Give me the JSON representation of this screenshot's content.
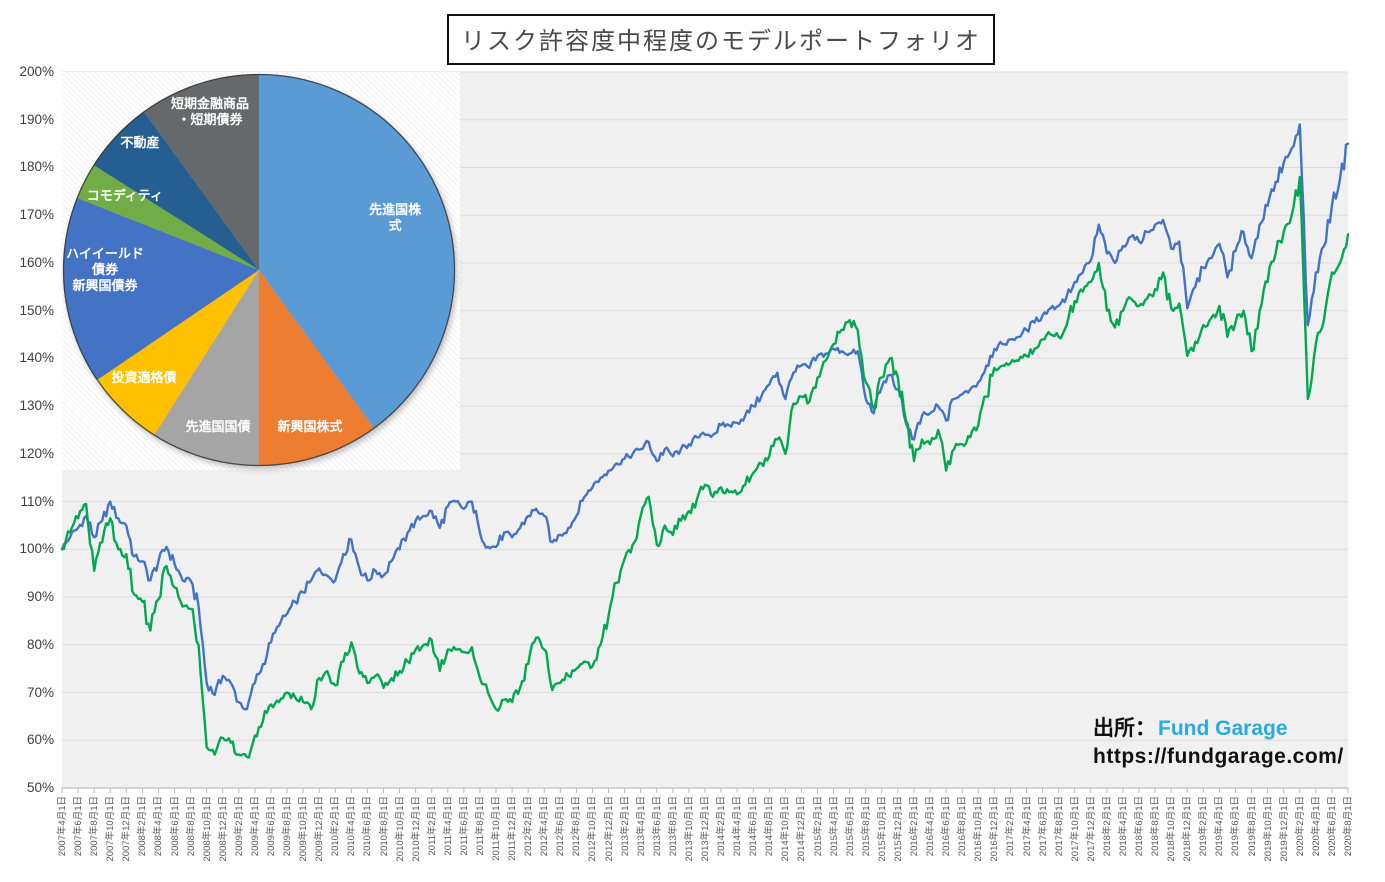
{
  "title": "リスク許容度中程度のモデルポートフォリオ",
  "source": {
    "prefix": "出所：",
    "name": "Fund Garage",
    "url": "https://fundgarage.com/",
    "brand_color": "#29ABE2"
  },
  "chart_data": [
    {
      "type": "line",
      "title": "リスク許容度中程度のモデルポートフォリオ",
      "xlabel": "",
      "ylabel": "",
      "grid": "horizontal",
      "legend": "none",
      "y_axis": {
        "min": 50,
        "max": 200,
        "step": 10,
        "format": "percent",
        "tick_labels": [
          "200%",
          "190%",
          "180%",
          "170%",
          "160%",
          "150%",
          "140%",
          "130%",
          "120%",
          "110%",
          "100%",
          "90%",
          "80%",
          "70%",
          "60%",
          "50%"
        ]
      },
      "x_axis": {
        "start": "2007年4月1日",
        "end": "2020年8月1日",
        "tick_interval_months": 2,
        "tick_labels": [
          "2007年4月1日",
          "2007年6月1日",
          "2007年8月1日",
          "2007年10月1日",
          "2007年12月1日",
          "2008年2月1日",
          "2008年4月1日",
          "2008年6月1日",
          "2008年8月1日",
          "2008年10月1日",
          "2008年12月1日",
          "2009年2月1日",
          "2009年4月1日",
          "2009年6月1日",
          "2009年8月1日",
          "2009年10月1日",
          "2009年12月1日",
          "2010年2月1日",
          "2010年4月1日",
          "2010年6月1日",
          "2010年8月1日",
          "2010年10月1日",
          "2010年12月1日",
          "2011年2月1日",
          "2011年4月1日",
          "2011年6月1日",
          "2011年8月1日",
          "2011年10月1日",
          "2011年12月1日",
          "2012年2月1日",
          "2012年4月1日",
          "2012年6月1日",
          "2012年8月1日",
          "2012年10月1日",
          "2012年12月1日",
          "2013年2月1日",
          "2013年4月1日",
          "2013年6月1日",
          "2013年8月1日",
          "2013年10月1日",
          "2013年12月1日",
          "2014年2月1日",
          "2014年4月1日",
          "2014年6月1日",
          "2014年8月1日",
          "2014年10月1日",
          "2014年12月1日",
          "2015年2月1日",
          "2015年4月1日",
          "2015年6月1日",
          "2015年8月1日",
          "2015年10月1日",
          "2015年12月1日",
          "2016年2月1日",
          "2016年4月1日",
          "2016年6月1日",
          "2016年8月1日",
          "2016年10月1日",
          "2016年12月1日",
          "2017年2月1日",
          "2017年4月1日",
          "2017年6月1日",
          "2017年8月1日",
          "2017年10月1日",
          "2017年12月1日",
          "2018年2月1日",
          "2018年4月1日",
          "2018年6月1日",
          "2018年8月1日",
          "2018年10月1日",
          "2018年12月1日",
          "2019年2月1日",
          "2019年4月1日",
          "2019年6月1日",
          "2019年8月1日",
          "2019年10月1日",
          "2019年12月1日",
          "2020年2月1日",
          "2020年4月1日",
          "2020年6月1日",
          "2020年8月1日"
        ]
      },
      "series": [
        {
          "name": "blue",
          "color": "#4472C4",
          "monthly_start": "2007-04",
          "monthly_values": [
            100,
            102.5,
            104.5,
            107,
            102.5,
            106,
            110,
            106.5,
            105,
            98.5,
            97.5,
            93.5,
            97.5,
            100.5,
            97,
            93.5,
            93.5,
            88,
            72,
            69.5,
            73.5,
            72,
            68,
            66.5,
            72,
            76,
            80.5,
            84,
            86.5,
            89,
            91,
            93.5,
            96,
            94.5,
            93.5,
            99,
            102,
            96,
            93.5,
            95.5,
            94.5,
            97.5,
            100,
            103.5,
            106,
            107,
            108,
            104.5,
            109,
            110,
            108.5,
            110,
            103.5,
            100.5,
            100.5,
            103.5,
            102.5,
            104.5,
            107,
            108.5,
            107,
            101.5,
            103,
            104.5,
            107,
            111,
            113,
            115,
            116.5,
            118,
            119,
            120,
            121,
            122.5,
            118.5,
            121,
            119.5,
            121,
            122,
            123.5,
            124,
            124,
            126,
            126,
            126.5,
            128,
            130,
            132,
            134.5,
            137,
            131.5,
            137,
            138.5,
            138,
            140.5,
            141,
            142,
            141.5,
            141,
            141.5,
            131.5,
            128.5,
            134,
            136.5,
            133.5,
            126.5,
            123,
            128,
            128.5,
            130,
            127,
            131.5,
            132.5,
            133.5,
            135,
            138.5,
            142,
            143,
            144,
            144.5,
            146,
            147.5,
            149,
            150.5,
            151,
            153,
            156,
            158,
            160.5,
            168,
            162,
            160,
            163.5,
            165.5,
            164.5,
            166.5,
            168,
            169,
            163,
            164.5,
            150.5,
            155,
            159,
            161,
            164,
            157,
            162.5,
            166.5,
            161,
            168,
            172,
            177,
            181,
            184,
            189,
            147,
            158,
            163.5,
            172,
            177.5,
            185
          ]
        },
        {
          "name": "green",
          "color": "#00A850",
          "monthly_start": "2007-04",
          "monthly_values": [
            100,
            103.5,
            106.5,
            109.5,
            95.5,
            101.5,
            106.5,
            100,
            99,
            90.5,
            89,
            83,
            89.5,
            96.5,
            92,
            88,
            87.5,
            80,
            58.5,
            57,
            60.5,
            59.5,
            57,
            56.5,
            61,
            64,
            67.5,
            68,
            70,
            69,
            68,
            66.5,
            73,
            74.5,
            71.5,
            76.5,
            80.5,
            74,
            72,
            73.5,
            71,
            73,
            74.5,
            76.5,
            79,
            80,
            81,
            74.5,
            79,
            79,
            78.5,
            79.5,
            73,
            70,
            66.5,
            68.5,
            68,
            71,
            76,
            81.5,
            79,
            70.5,
            72,
            73.5,
            75,
            76.5,
            75.5,
            80,
            86,
            93,
            98,
            101,
            107,
            111,
            101,
            105,
            103,
            106,
            108,
            110.5,
            113.5,
            111,
            113,
            112,
            111.5,
            113.5,
            116,
            118,
            119.5,
            123,
            120,
            130.5,
            132,
            131,
            136,
            139.5,
            143,
            146,
            148,
            146,
            135,
            129.5,
            136,
            140,
            136,
            127,
            118.5,
            123,
            122,
            125,
            116.5,
            121,
            122,
            123.5,
            126,
            132,
            138,
            138.5,
            139,
            139.5,
            140.5,
            142,
            144,
            145,
            144.5,
            147,
            152,
            154,
            156,
            160,
            150,
            146.5,
            150,
            152.5,
            151,
            152.5,
            154.5,
            158,
            150.5,
            151.5,
            140.5,
            143.5,
            147,
            148.5,
            151,
            144.5,
            147.5,
            150,
            141.5,
            150,
            156,
            162,
            166.5,
            170,
            178,
            131.5,
            143,
            148,
            158,
            160,
            166
          ]
        }
      ]
    },
    {
      "type": "pie",
      "title": "",
      "slices": [
        {
          "label": "先進国株式",
          "value": 40,
          "color": "#5B9BD5",
          "label_pos": {
            "x": 83.7,
            "y": 36.7
          }
        },
        {
          "label": "新興国株式",
          "value": 10,
          "color": "#ED7D31",
          "label_pos": {
            "x": 62.3,
            "y": 89.2
          }
        },
        {
          "label": "先進国国債",
          "value": 9,
          "color": "#A5A5A5",
          "label_pos": {
            "x": 39.2,
            "y": 89.2
          }
        },
        {
          "label": "投資適格債",
          "value": 6.5,
          "color": "#FFC000",
          "label_pos": {
            "x": 20.6,
            "y": 76.9
          }
        },
        {
          "label": "ハイイールド\n債券\n新興国債券",
          "value": 15.5,
          "color": "#4472C4",
          "label_pos": {
            "x": 10.8,
            "y": 49.7
          }
        },
        {
          "label": "コモディティ",
          "value": 3,
          "color": "#70AD47",
          "label_pos": {
            "x": 15.8,
            "y": 31.2
          }
        },
        {
          "label": "不動産",
          "value": 6,
          "color": "#255E91",
          "label_pos": {
            "x": 19.6,
            "y": 17.8
          }
        },
        {
          "label": "短期金融商品\n・短期債券",
          "value": 10,
          "color": "#66696C",
          "label_pos": {
            "x": 37.2,
            "y": 10.0
          }
        }
      ]
    }
  ]
}
